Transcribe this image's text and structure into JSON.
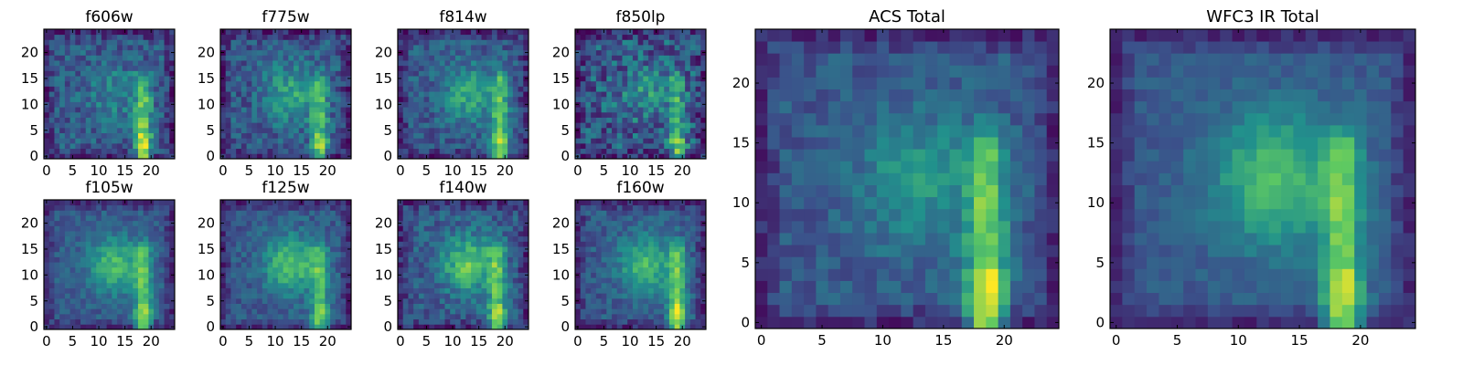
{
  "figure": {
    "colormap": "viridis",
    "colormap_stops": [
      "#440154",
      "#3b528b",
      "#21918c",
      "#5ec962",
      "#fde725"
    ]
  },
  "chart_data": [
    {
      "type": "heatmap",
      "title": "f606w",
      "grid_size": 25,
      "x_ticks": [
        0,
        5,
        10,
        15,
        20
      ],
      "y_ticks": [
        0,
        5,
        10,
        15,
        20
      ],
      "pattern": {
        "streak_strength": 0.55,
        "diffuse_strength": 0.18,
        "noise": 0.28,
        "streak_x": 18.5,
        "streak_top": 15
      }
    },
    {
      "type": "heatmap",
      "title": "f775w",
      "grid_size": 25,
      "x_ticks": [
        0,
        5,
        10,
        15,
        20
      ],
      "y_ticks": [
        0,
        5,
        10,
        15,
        20
      ],
      "pattern": {
        "streak_strength": 0.45,
        "diffuse_strength": 0.3,
        "noise": 0.28,
        "streak_x": 18.5,
        "streak_top": 15
      }
    },
    {
      "type": "heatmap",
      "title": "f814w",
      "grid_size": 25,
      "x_ticks": [
        0,
        5,
        10,
        15,
        20
      ],
      "y_ticks": [
        0,
        5,
        10,
        15,
        20
      ],
      "pattern": {
        "streak_strength": 0.5,
        "diffuse_strength": 0.32,
        "noise": 0.25,
        "streak_x": 19,
        "streak_top": 15
      }
    },
    {
      "type": "heatmap",
      "title": "f850lp",
      "grid_size": 25,
      "x_ticks": [
        0,
        5,
        10,
        15,
        20
      ],
      "y_ticks": [
        0,
        5,
        10,
        15,
        20
      ],
      "pattern": {
        "streak_strength": 0.4,
        "diffuse_strength": 0.2,
        "noise": 0.4,
        "streak_x": 19,
        "streak_top": 15
      }
    },
    {
      "type": "heatmap",
      "title": "f105w",
      "grid_size": 25,
      "x_ticks": [
        0,
        5,
        10,
        15,
        20
      ],
      "y_ticks": [
        0,
        5,
        10,
        15,
        20
      ],
      "pattern": {
        "streak_strength": 0.5,
        "diffuse_strength": 0.4,
        "noise": 0.18,
        "streak_x": 18.5,
        "streak_top": 15
      }
    },
    {
      "type": "heatmap",
      "title": "f125w",
      "grid_size": 25,
      "x_ticks": [
        0,
        5,
        10,
        15,
        20
      ],
      "y_ticks": [
        0,
        5,
        10,
        15,
        20
      ],
      "pattern": {
        "streak_strength": 0.45,
        "diffuse_strength": 0.45,
        "noise": 0.2,
        "streak_x": 18.5,
        "streak_top": 15
      }
    },
    {
      "type": "heatmap",
      "title": "f140w",
      "grid_size": 25,
      "x_ticks": [
        0,
        5,
        10,
        15,
        20
      ],
      "y_ticks": [
        0,
        5,
        10,
        15,
        20
      ],
      "pattern": {
        "streak_strength": 0.5,
        "diffuse_strength": 0.45,
        "noise": 0.25,
        "streak_x": 18.5,
        "streak_top": 15
      }
    },
    {
      "type": "heatmap",
      "title": "f160w",
      "grid_size": 25,
      "x_ticks": [
        0,
        5,
        10,
        15,
        20
      ],
      "y_ticks": [
        0,
        5,
        10,
        15,
        20
      ],
      "pattern": {
        "streak_strength": 0.55,
        "diffuse_strength": 0.4,
        "noise": 0.2,
        "streak_x": 19,
        "streak_top": 15
      }
    },
    {
      "type": "heatmap",
      "title": "ACS Total",
      "grid_size": 25,
      "x_ticks": [
        0,
        5,
        10,
        15,
        20
      ],
      "y_ticks": [
        0,
        5,
        10,
        15,
        20
      ],
      "pattern": {
        "streak_strength": 0.6,
        "diffuse_strength": 0.25,
        "noise": 0.18,
        "streak_x": 18.5,
        "streak_top": 15
      }
    },
    {
      "type": "heatmap",
      "title": "WFC3 IR Total",
      "grid_size": 25,
      "x_ticks": [
        0,
        5,
        10,
        15,
        20
      ],
      "y_ticks": [
        0,
        5,
        10,
        15,
        20
      ],
      "pattern": {
        "streak_strength": 0.55,
        "diffuse_strength": 0.42,
        "noise": 0.12,
        "streak_x": 18.5,
        "streak_top": 15
      }
    }
  ]
}
